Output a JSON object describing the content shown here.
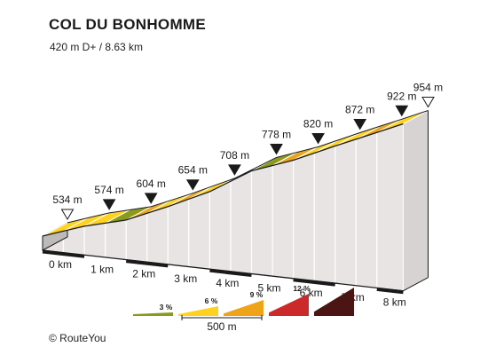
{
  "header": {
    "title": "COL DU BONHOMME",
    "subtitle": "420 m D+ / 8.63 km"
  },
  "footer": {
    "copyright": "© RouteYou"
  },
  "chart_data": {
    "type": "area",
    "title": "COL DU BONHOMME",
    "subtitle": "420 m D+ / 8.63 km",
    "total_distance_km": 8.63,
    "total_ascent_m": 420,
    "x_unit": "km",
    "y_unit": "m",
    "elevation_markers": [
      {
        "km": 0.0,
        "elev": 534,
        "label": "534 m",
        "marker": "open"
      },
      {
        "km": 1.0,
        "elev": 574,
        "label": "574 m",
        "marker": "filled"
      },
      {
        "km": 2.0,
        "elev": 604,
        "label": "604 m",
        "marker": "filled"
      },
      {
        "km": 3.0,
        "elev": 654,
        "label": "654 m",
        "marker": "filled"
      },
      {
        "km": 4.0,
        "elev": 708,
        "label": "708 m",
        "marker": "filled"
      },
      {
        "km": 5.0,
        "elev": 778,
        "label": "778 m",
        "marker": "filled"
      },
      {
        "km": 6.0,
        "elev": 820,
        "label": "820 m",
        "marker": "filled"
      },
      {
        "km": 7.0,
        "elev": 872,
        "label": "872 m",
        "marker": "filled"
      },
      {
        "km": 8.0,
        "elev": 922,
        "label": "922 m",
        "marker": "filled"
      },
      {
        "km": 8.63,
        "elev": 954,
        "label": "954 m",
        "marker": "open"
      }
    ],
    "segments": [
      {
        "from_km": 0.0,
        "to_km": 0.5,
        "gradient_class": "6%"
      },
      {
        "from_km": 0.5,
        "to_km": 1.0,
        "gradient_class": "6%"
      },
      {
        "from_km": 1.0,
        "to_km": 1.5,
        "gradient_class": "6%"
      },
      {
        "from_km": 1.5,
        "to_km": 2.0,
        "gradient_class": "3%"
      },
      {
        "from_km": 2.0,
        "to_km": 2.5,
        "gradient_class": "9%"
      },
      {
        "from_km": 2.5,
        "to_km": 3.0,
        "gradient_class": "6%"
      },
      {
        "from_km": 3.0,
        "to_km": 3.5,
        "gradient_class": "9%"
      },
      {
        "from_km": 3.5,
        "to_km": 4.0,
        "gradient_class": "6%"
      },
      {
        "from_km": 4.0,
        "to_km": 4.5,
        "gradient_class": "9%"
      },
      {
        "from_km": 4.5,
        "to_km": 5.0,
        "gradient_class": "9%"
      },
      {
        "from_km": 5.0,
        "to_km": 5.5,
        "gradient_class": "3%"
      },
      {
        "from_km": 5.5,
        "to_km": 6.0,
        "gradient_class": "9%"
      },
      {
        "from_km": 6.0,
        "to_km": 6.5,
        "gradient_class": "6%"
      },
      {
        "from_km": 6.5,
        "to_km": 7.0,
        "gradient_class": "6%"
      },
      {
        "from_km": 7.0,
        "to_km": 7.5,
        "gradient_class": "6%"
      },
      {
        "from_km": 7.5,
        "to_km": 8.0,
        "gradient_class": "9%"
      },
      {
        "from_km": 8.0,
        "to_km": 8.63,
        "gradient_class": "6%"
      }
    ],
    "km_ticks": [
      "0 km",
      "1 km",
      "2 km",
      "3 km",
      "4 km",
      "5 km",
      "6 km",
      "7 km",
      "8 km"
    ],
    "legend": {
      "scale_label": "500 m",
      "classes": [
        {
          "label": "3 %",
          "color": "#8a9a1a"
        },
        {
          "label": "6 %",
          "color": "#ffd21f"
        },
        {
          "label": "9 %",
          "color": "#eea318"
        },
        {
          "label": "12 %",
          "color": "#cc2a2a"
        },
        {
          "label": "",
          "color": "#4a1512"
        }
      ]
    },
    "colors": {
      "3%": "#8a9a1a",
      "6%": "#ffd21f",
      "9%": "#eea318",
      "side_face": "#e7e4e3",
      "side_stroke": "#ffffff",
      "outline": "#1a1a1a"
    }
  }
}
